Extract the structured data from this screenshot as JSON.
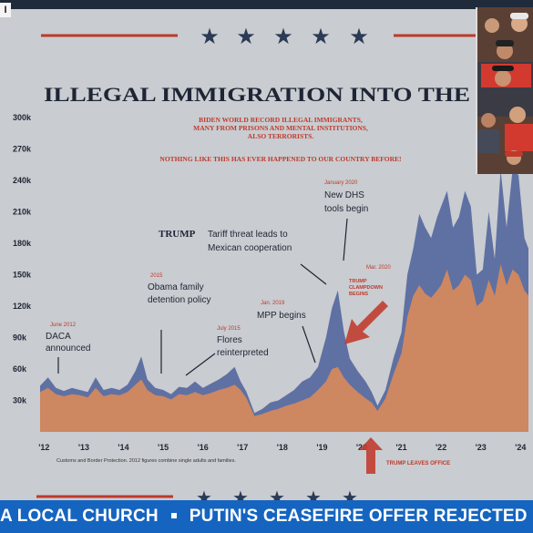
{
  "slide": {
    "title": "ILLEGAL IMMIGRATION INTO THE",
    "subtitle_1": "BIDEN WORLD RECORD ILLEGAL IMMIGRANTS,",
    "subtitle_2": "MANY FROM PRISONS AND MENTAL INSTITUTIONS,",
    "subtitle_3": "ALSO TERRORISTS.",
    "subtitle_4": "NOTHING LIKE THIS HAS EVER HAPPENED TO OUR COUNTRY BEFORE!",
    "source_note": "Customs and Border Protection. 2012 figures combine single adults and families.",
    "trump_tag": "TRUMP"
  },
  "annotations": {
    "daca_date": "June 2012",
    "daca": [
      "DACA",
      "announced"
    ],
    "obama_date": "2015",
    "obama": [
      "Obama family",
      "detention policy"
    ],
    "flores_date": "July 2015",
    "flores": [
      "Flores",
      "reinterpreted"
    ],
    "tariff": [
      "Tariff threat leads to",
      "Mexican cooperation"
    ],
    "mpp_date": "Jan. 2019",
    "mpp": "MPP begins",
    "dhs_date": "January 2020",
    "dhs": [
      "New DHS",
      "tools begin"
    ],
    "mar_date": "Mar. 2020",
    "clampdown": [
      "TRUMP",
      "CLAMPDOWN",
      "BEGINS"
    ],
    "leaves": "TRUMP LEAVES OFFICE"
  },
  "ticker": {
    "left": "A LOCAL CHURCH",
    "right": "PUTIN'S CEASEFIRE OFFER REJECTED"
  },
  "corner_logo": "I",
  "colors": {
    "slide_bg": "#c9ccd0",
    "blue_series": "#5a6aa0",
    "orange_series": "#d98a5a",
    "accent_red": "#c0392b",
    "star": "#2b3a55",
    "ticker": "#1565c0"
  },
  "chart_data": {
    "type": "area",
    "title": "ILLEGAL IMMIGRATION INTO THE",
    "xlabel": "",
    "ylabel": "",
    "ylim": [
      0,
      300000
    ],
    "y_ticks": [
      "30k",
      "60k",
      "90k",
      "120k",
      "150k",
      "180k",
      "210k",
      "240k",
      "270k",
      "300k"
    ],
    "y_tick_values": [
      30000,
      60000,
      90000,
      120000,
      150000,
      180000,
      210000,
      240000,
      270000,
      300000
    ],
    "x_ticks": [
      "'12",
      "'13",
      "'14",
      "'15",
      "'16",
      "'17",
      "'18",
      "'19",
      "'20",
      "'21",
      "'22",
      "'23",
      "'24"
    ],
    "x_tick_values": [
      2012,
      2013,
      2014,
      2015,
      2016,
      2017,
      2018,
      2019,
      2020,
      2021,
      2022,
      2023,
      2024
    ],
    "x": [
      2011.9,
      2012.1,
      2012.3,
      2012.5,
      2012.7,
      2012.9,
      2013.1,
      2013.3,
      2013.5,
      2013.7,
      2013.9,
      2014.1,
      2014.3,
      2014.45,
      2014.6,
      2014.8,
      2015.0,
      2015.2,
      2015.4,
      2015.6,
      2015.8,
      2016.0,
      2016.2,
      2016.4,
      2016.6,
      2016.8,
      2016.95,
      2017.1,
      2017.3,
      2017.5,
      2017.7,
      2017.9,
      2018.1,
      2018.3,
      2018.5,
      2018.7,
      2018.9,
      2019.1,
      2019.25,
      2019.4,
      2019.55,
      2019.7,
      2019.9,
      2020.1,
      2020.25,
      2020.4,
      2020.6,
      2020.8,
      2021.0,
      2021.15,
      2021.3,
      2021.45,
      2021.6,
      2021.75,
      2021.9,
      2022.0,
      2022.15,
      2022.3,
      2022.45,
      2022.6,
      2022.75,
      2022.9,
      2023.05,
      2023.2,
      2023.35,
      2023.5,
      2023.65,
      2023.8,
      2023.95,
      2024.1,
      2024.2
    ],
    "series": [
      {
        "values": [
          44000,
          52000,
          42000,
          39000,
          42000,
          40000,
          38000,
          52000,
          40000,
          42000,
          40000,
          45000,
          58000,
          72000,
          50000,
          42000,
          40000,
          36000,
          43000,
          42000,
          48000,
          42000,
          46000,
          50000,
          55000,
          62000,
          48000,
          38000,
          18000,
          22000,
          28000,
          30000,
          35000,
          40000,
          48000,
          52000,
          62000,
          90000,
          118000,
          135000,
          96000,
          70000,
          58000,
          48000,
          38000,
          25000,
          40000,
          70000,
          95000,
          150000,
          175000,
          208000,
          195000,
          185000,
          205000,
          215000,
          230000,
          195000,
          205000,
          230000,
          215000,
          150000,
          155000,
          210000,
          165000,
          250000,
          195000,
          250000,
          245000,
          185000,
          175000
        ]
      },
      {
        "values": [
          38000,
          42000,
          36000,
          34000,
          36000,
          35000,
          33000,
          42000,
          34000,
          36000,
          35000,
          38000,
          45000,
          50000,
          40000,
          35000,
          34000,
          31000,
          36000,
          35000,
          38000,
          35000,
          37000,
          40000,
          42000,
          45000,
          40000,
          32000,
          15000,
          17000,
          20000,
          22000,
          25000,
          27000,
          30000,
          33000,
          40000,
          48000,
          60000,
          62000,
          52000,
          45000,
          38000,
          32000,
          28000,
          20000,
          32000,
          55000,
          75000,
          110000,
          130000,
          140000,
          132000,
          128000,
          135000,
          140000,
          155000,
          135000,
          140000,
          150000,
          145000,
          120000,
          125000,
          145000,
          130000,
          160000,
          140000,
          155000,
          150000,
          135000,
          130000
        ]
      }
    ],
    "grid": false,
    "legend": "none"
  }
}
